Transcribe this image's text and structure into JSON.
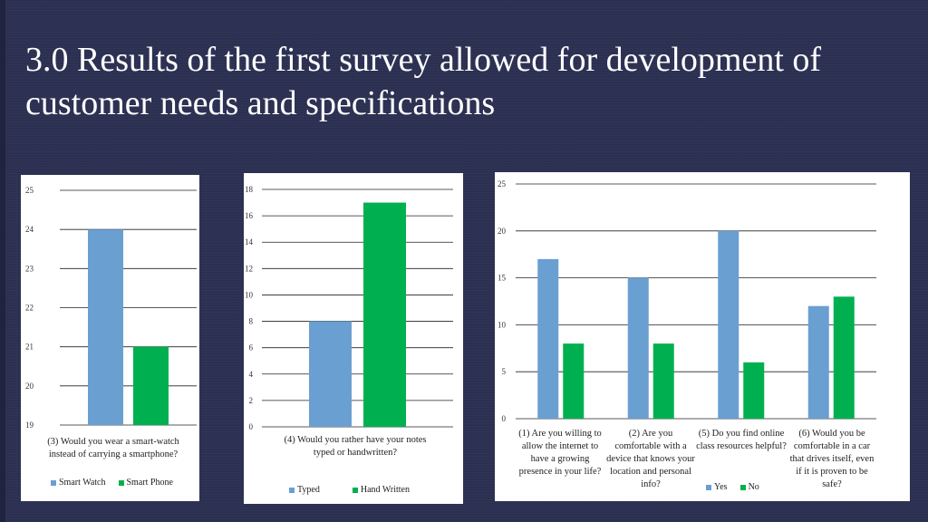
{
  "slide": {
    "title": "3.0 Results of the first survey allowed for development of customer needs and specifications"
  },
  "colors": {
    "series_blue": "#6a9fd2",
    "series_green": "#00b050"
  },
  "chart_data": [
    {
      "type": "bar",
      "categories": [
        "(3) Would you wear a smart-watch instead of carrying a smartphone?"
      ],
      "series": [
        {
          "name": "Smart Watch",
          "values": [
            24
          ]
        },
        {
          "name": "Smart Phone",
          "values": [
            21
          ]
        }
      ],
      "ylim": [
        19,
        25
      ],
      "yticks": [
        19,
        20,
        21,
        22,
        23,
        24,
        25
      ],
      "grid": true,
      "legend": "bottom"
    },
    {
      "type": "bar",
      "categories": [
        "(4) Would you rather have your notes typed or handwritten?"
      ],
      "series": [
        {
          "name": "Typed",
          "values": [
            8
          ]
        },
        {
          "name": "Hand Written",
          "values": [
            17
          ]
        }
      ],
      "ylim": [
        0,
        18
      ],
      "yticks": [
        0,
        2,
        4,
        6,
        8,
        10,
        12,
        14,
        16,
        18
      ],
      "grid": true,
      "legend": "bottom"
    },
    {
      "type": "bar",
      "categories": [
        "(1) Are you willing to allow the internet to have a growing presence in your life?",
        "(2) Are you comfortable with a device that knows your location and personal info?",
        "(5) Do you find online class resources helpful?",
        "(6) Would you be comfortable in a car that drives itself, even if it is proven to be safe?"
      ],
      "series": [
        {
          "name": "Yes",
          "values": [
            17,
            15,
            20,
            12
          ]
        },
        {
          "name": "No",
          "values": [
            8,
            8,
            6,
            13
          ]
        }
      ],
      "ylim": [
        0,
        25
      ],
      "yticks": [
        0,
        5,
        10,
        15,
        20,
        25
      ],
      "grid": true,
      "legend": "bottom"
    }
  ]
}
